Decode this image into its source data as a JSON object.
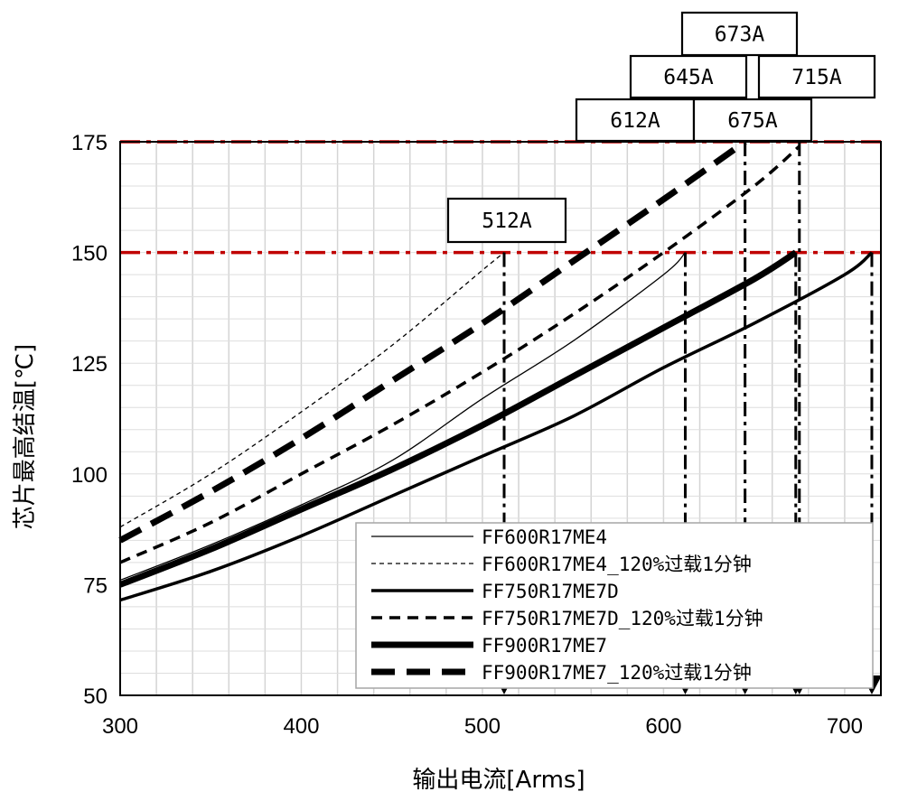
{
  "chart_data": {
    "type": "line",
    "xlabel": "输出电流[Arms]",
    "ylabel": "芯片最高结温[℃]",
    "xlim": [
      300,
      720
    ],
    "ylim": [
      50,
      175
    ],
    "xticks": [
      300,
      400,
      500,
      600,
      700
    ],
    "yticks": [
      50,
      75,
      100,
      125,
      150,
      175
    ],
    "grid": true,
    "legend_position": "bottom-right",
    "series": [
      {
        "name": "FF600R17ME4",
        "style": "thin-solid",
        "x": [
          300,
          350,
          400,
          450,
          500,
          550,
          600,
          612
        ],
        "y": [
          76,
          84,
          93,
          103,
          117,
          130,
          145,
          150
        ]
      },
      {
        "name": "FF600R17ME4_120%过载1分钟",
        "style": "thin-dashed",
        "x": [
          300,
          350,
          400,
          450,
          500,
          512
        ],
        "y": [
          88,
          100,
          114,
          129,
          146,
          150
        ]
      },
      {
        "name": "FF750R17ME7D",
        "style": "medium-solid",
        "x": [
          300,
          350,
          400,
          450,
          500,
          550,
          600,
          650,
          700,
          715
        ],
        "y": [
          71.5,
          78,
          86,
          95,
          104,
          113,
          124,
          134,
          145,
          150
        ]
      },
      {
        "name": "FF750R17ME7D_120%过载1分钟",
        "style": "medium-dashed",
        "x": [
          300,
          350,
          400,
          450,
          500,
          550,
          600,
          650,
          675
        ],
        "y": [
          80,
          89,
          100,
          111,
          123,
          136,
          150,
          165,
          174
        ]
      },
      {
        "name": "FF900R17ME7",
        "style": "thick-solid",
        "x": [
          300,
          350,
          400,
          450,
          500,
          550,
          600,
          650,
          673
        ],
        "y": [
          75,
          83,
          92,
          101,
          111,
          122,
          133,
          144,
          150
        ]
      },
      {
        "name": "FF900R17ME7_120%过载1分钟",
        "style": "thick-dashed",
        "x": [
          300,
          350,
          400,
          450,
          500,
          550,
          600,
          645
        ],
        "y": [
          85,
          96,
          108,
          121,
          134,
          148,
          162,
          175
        ]
      }
    ],
    "reference_lines": [
      {
        "y": 150,
        "color": "#c00000",
        "style": "dash-dot"
      },
      {
        "y": 175,
        "color": "#c00000",
        "style": "dash-dot"
      }
    ],
    "drop_lines": [
      512,
      612,
      645,
      673,
      675,
      715
    ],
    "annotations": [
      {
        "label": "512A",
        "x": 512
      },
      {
        "label": "612A",
        "x": 612
      },
      {
        "label": "645A",
        "x": 645
      },
      {
        "label": "673A",
        "x": 673
      },
      {
        "label": "675A",
        "x": 675
      },
      {
        "label": "715A",
        "x": 715
      }
    ]
  }
}
